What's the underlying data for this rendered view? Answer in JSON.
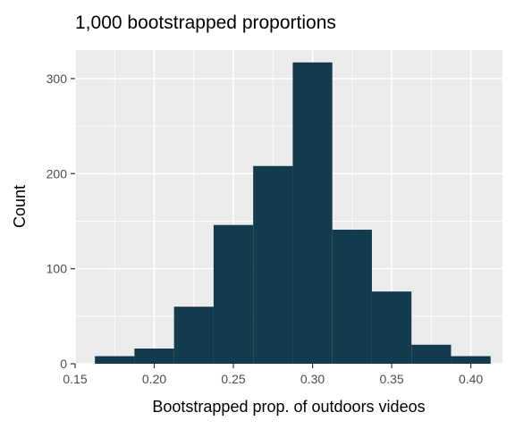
{
  "chart_data": {
    "type": "bar",
    "title": "1,000 bootstrapped proportions",
    "xlabel": "Bootstrapped prop. of outdoors videos",
    "ylabel": "Count",
    "xlim": [
      0.15,
      0.42
    ],
    "ylim": [
      0,
      330
    ],
    "x_ticks": [
      0.15,
      0.2,
      0.25,
      0.3,
      0.35,
      0.4
    ],
    "x_tick_labels": [
      "0.15",
      "0.20",
      "0.25",
      "0.30",
      "0.35",
      "0.40"
    ],
    "y_ticks": [
      0,
      100,
      200,
      300
    ],
    "y_tick_labels": [
      "0",
      "100",
      "200",
      "300"
    ],
    "grid": true,
    "bar_color": "#133A4D",
    "panel_background": "#EBEBEB",
    "grid_color": "#FFFFFF",
    "bins": [
      {
        "x0": 0.1625,
        "x1": 0.1875,
        "count": 8
      },
      {
        "x0": 0.1875,
        "x1": 0.2125,
        "count": 16
      },
      {
        "x0": 0.2125,
        "x1": 0.2375,
        "count": 60
      },
      {
        "x0": 0.2375,
        "x1": 0.2625,
        "count": 146
      },
      {
        "x0": 0.2625,
        "x1": 0.2875,
        "count": 208
      },
      {
        "x0": 0.2875,
        "x1": 0.3125,
        "count": 317
      },
      {
        "x0": 0.3125,
        "x1": 0.3375,
        "count": 141
      },
      {
        "x0": 0.3375,
        "x1": 0.3625,
        "count": 76
      },
      {
        "x0": 0.3625,
        "x1": 0.3875,
        "count": 20
      },
      {
        "x0": 0.3875,
        "x1": 0.4125,
        "count": 8
      }
    ]
  }
}
